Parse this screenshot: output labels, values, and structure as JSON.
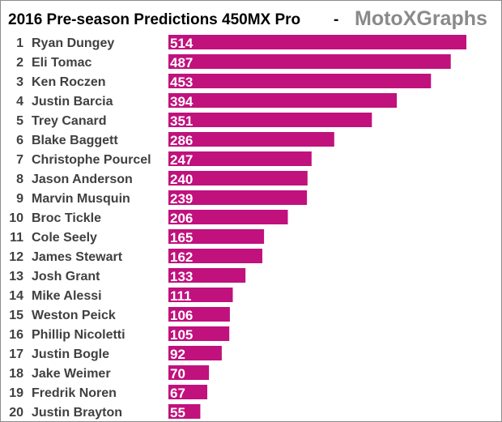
{
  "header": {
    "title": "2016 Pre-season Predictions 450MX Pro",
    "separator": "-",
    "brand": "MotoXGraphs"
  },
  "colors": {
    "bar": "#c0117d",
    "background": "#ffffff",
    "label_text": "#404040",
    "brand_text": "#8a8a8a",
    "value_text": "#ffffff"
  },
  "chart_data": {
    "type": "bar",
    "orientation": "horizontal",
    "title": "2016 Pre-season Predictions 450MX Pro",
    "ranks": [
      "1",
      "2",
      "3",
      "4",
      "5",
      "6",
      "7",
      "8",
      "9",
      "10",
      "11",
      "12",
      "13",
      "14",
      "15",
      "16",
      "17",
      "18",
      "19",
      "20"
    ],
    "categories": [
      "Ryan Dungey",
      "Eli Tomac",
      "Ken Roczen",
      "Justin Barcia",
      "Trey Canard",
      "Blake Baggett",
      "Christophe Pourcel",
      "Jason Anderson",
      "Marvin Musquin",
      "Broc Tickle",
      "Cole Seely",
      "James Stewart",
      "Josh Grant",
      "Mike Alessi",
      "Weston Peick",
      "Phillip Nicoletti",
      "Justin Bogle",
      "Jake Weimer",
      "Fredrik Noren",
      "Justin Brayton"
    ],
    "values": [
      514,
      487,
      453,
      394,
      351,
      286,
      247,
      240,
      239,
      206,
      165,
      162,
      133,
      111,
      106,
      105,
      92,
      70,
      67,
      55
    ],
    "xlim": [
      0,
      514
    ],
    "data_labels": "inside-base",
    "grid": false,
    "legend": "none"
  }
}
